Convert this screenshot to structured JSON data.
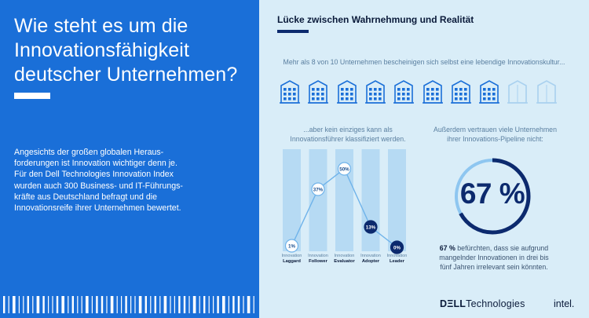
{
  "colors": {
    "left_panel": "#1a6fd8",
    "right_panel": "#d9edf8",
    "accent_dark": "#0c2a6e",
    "accent_light": "#79b6ea"
  },
  "headline": [
    "Wie steht es um die",
    "Innovationsfähigkeit",
    "deutscher Unternehmen?"
  ],
  "intro": [
    "Angesichts der großen globalen Heraus-",
    "forderungen ist Innovation wichtiger denn je.",
    "Für den Dell Technologies Innovation Index",
    "wurden auch 300 Business- und IT-Führungs-",
    "kräfte aus Deutschland befragt und die",
    "Innovationsreife ihrer Unternehmen bewertet."
  ],
  "right": {
    "title": "Lücke zwischen Wahrnehmung und Realität",
    "subline": "Mehr als 8 von 10 Unternehmen bescheinigen sich selbst eine lebendige Innovationskultur...",
    "buildings": {
      "total": 10,
      "highlighted": 8,
      "icon": "office-building-icon"
    },
    "left_caption": [
      "...aber kein einziges kann als",
      "Innovationsführer klassifiziert werden."
    ],
    "right_caption": [
      "Außerdem vertrauen viele Unternehmen",
      "ihrer Innovations-Pipeline nicht:"
    ],
    "donut_value_label": "67 %",
    "donut_value": 67,
    "donut_text_bold": "67 %",
    "donut_text_rest": " befürchten, dass sie aufgrund",
    "donut_text_lines": [
      "mangelnder Innovationen in drei bis",
      "fünf Jahren irrelevant sein könnten."
    ]
  },
  "chart_data": {
    "type": "line",
    "categories": [
      {
        "prefix": "Innovation",
        "name": "Laggard"
      },
      {
        "prefix": "Innovation",
        "name": "Follower"
      },
      {
        "prefix": "Innovation",
        "name": "Evaluator"
      },
      {
        "prefix": "Innovation",
        "name": "Adopter"
      },
      {
        "prefix": "Innovation",
        "name": "Leader"
      }
    ],
    "values": [
      1,
      37,
      50,
      13,
      0
    ],
    "labels": [
      "1%",
      "37%",
      "50%",
      "13%",
      "0%"
    ],
    "ylim": [
      0,
      60
    ]
  },
  "logos": {
    "dell_bold": "DΞLL",
    "dell_rest": "Technologies",
    "intel": "intel."
  }
}
